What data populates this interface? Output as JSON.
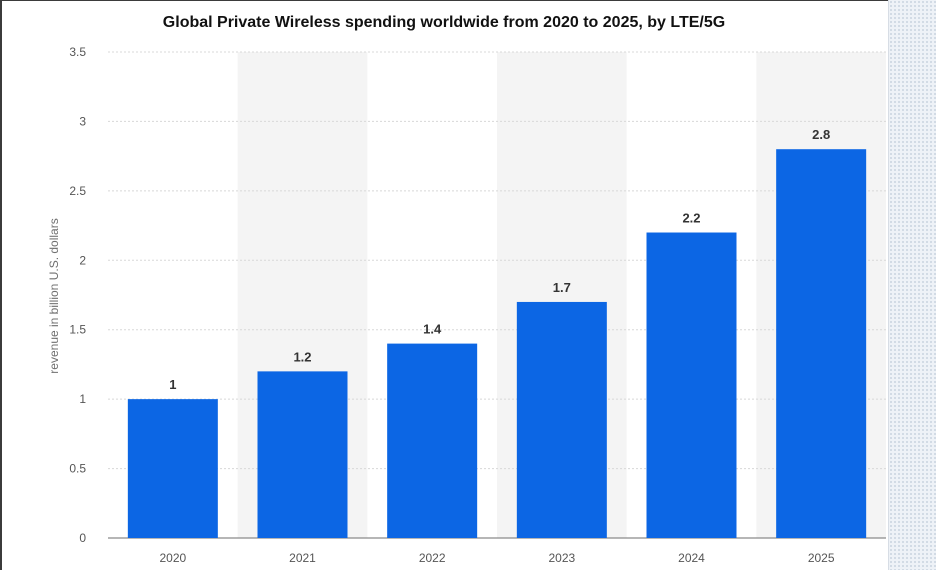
{
  "chart_data": {
    "type": "bar",
    "title": "Global Private Wireless spending worldwide from 2020 to 2025, by LTE/5G",
    "xlabel": "",
    "ylabel": "revenue in billion U.S. dollars",
    "categories": [
      "2020",
      "2021",
      "2022",
      "2023",
      "2024",
      "2025"
    ],
    "values": [
      1,
      1.2,
      1.4,
      1.7,
      2.2,
      2.8
    ],
    "data_labels": [
      "1",
      "1.2",
      "1.4",
      "1.7",
      "2.2",
      "2.8"
    ],
    "y_ticks": [
      "0",
      "0.5",
      "1",
      "1.5",
      "2",
      "2.5",
      "3",
      "3.5"
    ],
    "y_tick_values": [
      0,
      0.5,
      1,
      1.5,
      2,
      2.5,
      3,
      3.5
    ],
    "ylim": [
      0,
      3.5
    ],
    "grid": true,
    "bar_color": "#0c66e4",
    "band_color": "#f4f4f4"
  }
}
